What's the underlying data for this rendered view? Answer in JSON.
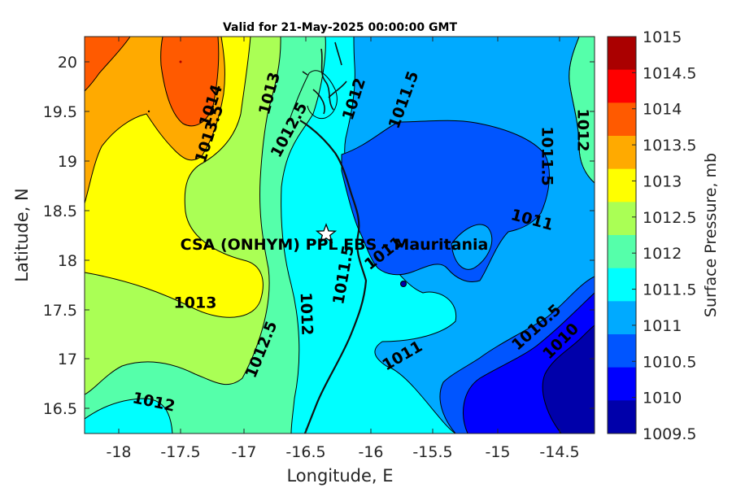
{
  "title": "Valid for 21-May-2025 00:00:00 GMT",
  "x_axis": {
    "label": "Longitude, E",
    "ticks": [
      "-18",
      "-17.5",
      "-17",
      "-16.5",
      "-16",
      "-15.5",
      "-15",
      "-14.5"
    ]
  },
  "y_axis": {
    "label": "Latitude, N",
    "ticks": [
      "20",
      "19.5",
      "19",
      "18.5",
      "18",
      "17.5",
      "17",
      "16.5"
    ]
  },
  "colorbar": {
    "label": "Surface Pressure, mb",
    "ticks": [
      "1015",
      "1014.5",
      "1014",
      "1013.5",
      "1013",
      "1012.5",
      "1012",
      "1011.5",
      "1011",
      "1010.5",
      "1010",
      "1009.5"
    ],
    "colors": [
      "#AA0000",
      "#FF0000",
      "#FF5A00",
      "#FFAA00",
      "#FFFF00",
      "#AAFF55",
      "#55FFAA",
      "#00FFFF",
      "#00AAFF",
      "#0055FF",
      "#0000FF",
      "#0000AA"
    ]
  },
  "site": {
    "label": "CSA (ONHYM) PPL EBS - Mauritania",
    "marker": "star-icon"
  },
  "contour_labels": [
    {
      "text": "1014"
    },
    {
      "text": "1013.5"
    },
    {
      "text": "1013"
    },
    {
      "text": "1012.5"
    },
    {
      "text": "1012"
    },
    {
      "text": "1011.5"
    },
    {
      "text": "1011.5"
    },
    {
      "text": "1012"
    },
    {
      "text": "1011"
    },
    {
      "text": "1011"
    },
    {
      "text": "1011.5"
    },
    {
      "text": "1012"
    },
    {
      "text": "1013"
    },
    {
      "text": "1012.5"
    },
    {
      "text": "1012"
    },
    {
      "text": "1011"
    },
    {
      "text": "1010.5"
    },
    {
      "text": "1010"
    }
  ]
}
